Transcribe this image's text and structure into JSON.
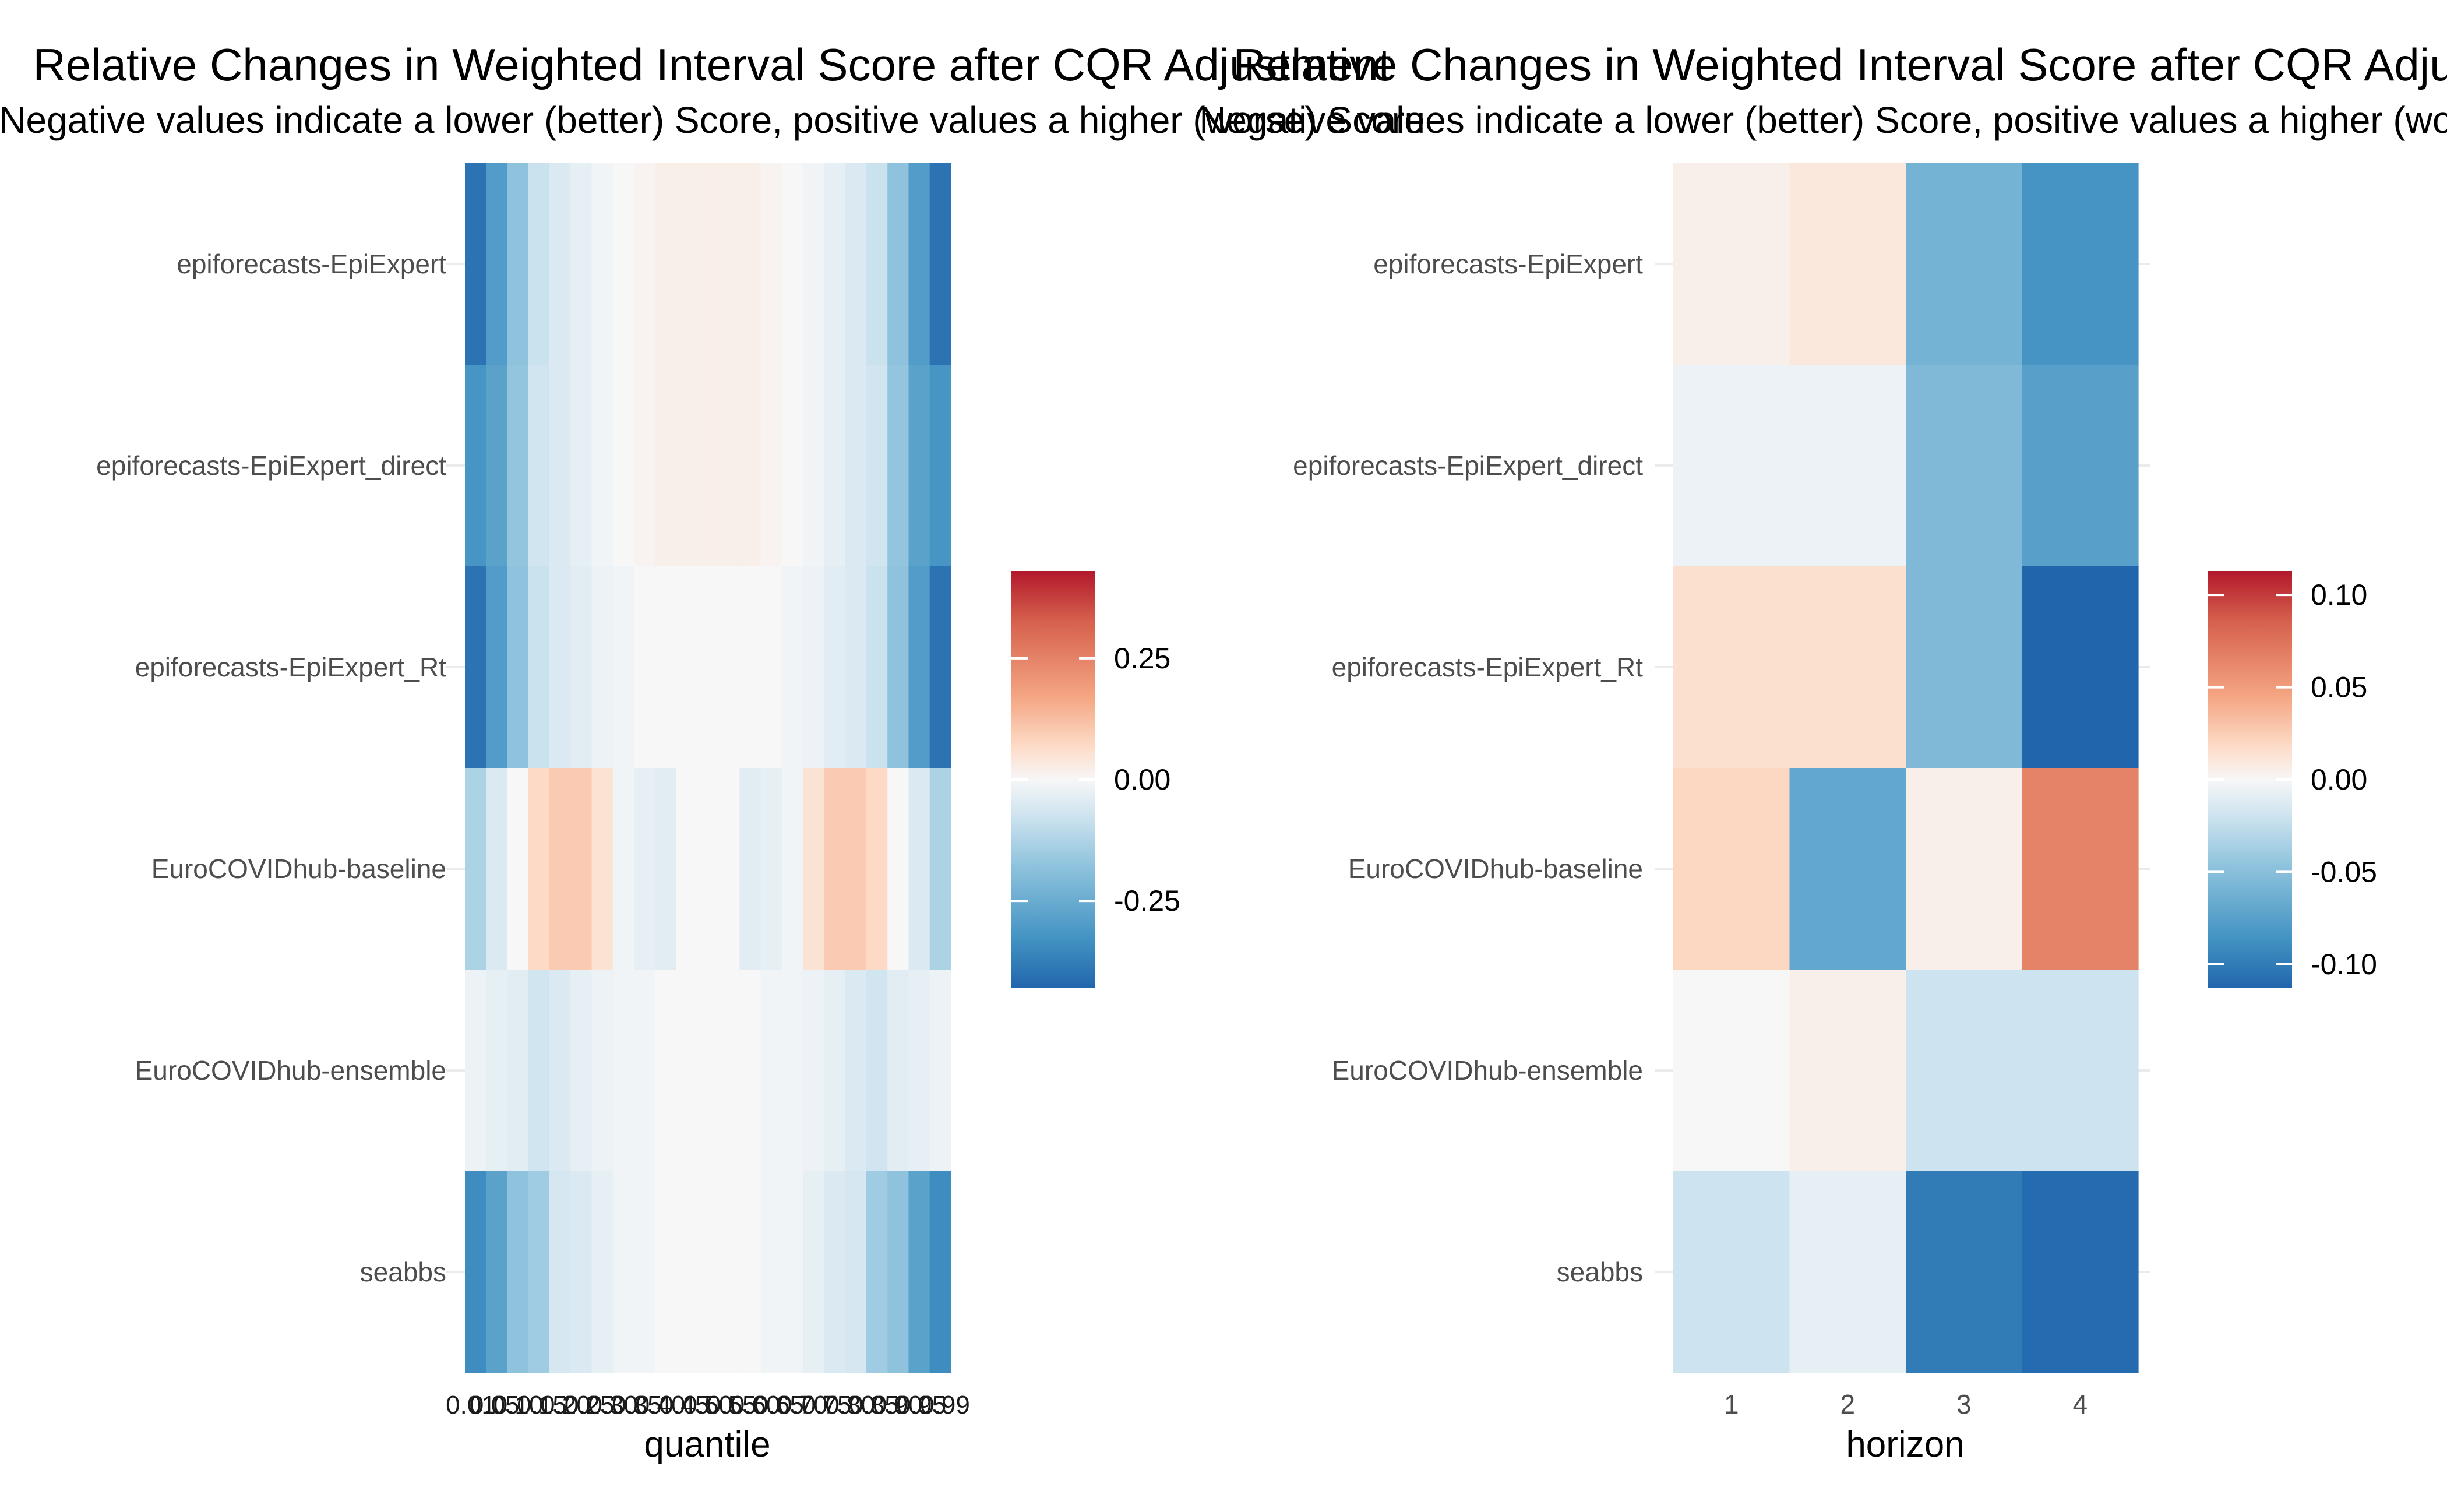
{
  "chart_data": [
    {
      "type": "heatmap",
      "title": "Relative Changes in Weighted Interval Score after CQR Adjustment",
      "subtitle": "Negative values indicate a lower (better) Score, positive values a higher (worse) Score",
      "xlabel": "quantile",
      "ylabel": "",
      "x": [
        "0.01",
        "0.025",
        "0.05",
        "0.1",
        "0.15",
        "0.2",
        "0.25",
        "0.3",
        "0.35",
        "0.4",
        "0.45",
        "0.5",
        "0.55",
        "0.6",
        "0.65",
        "0.7",
        "0.75",
        "0.8",
        "0.85",
        "0.9",
        "0.95",
        "0.975",
        "0.99"
      ],
      "x_tick_labels": [
        "0.01",
        "0.05",
        "0.10",
        "0.15",
        "0.20",
        "0.25",
        "0.30",
        "0.35",
        "0.40",
        "0.45",
        "0.50",
        "0.55",
        "0.60",
        "0.65",
        "0.70",
        "0.75",
        "0.80",
        "0.85",
        "0.90",
        "0.95",
        "0.99"
      ],
      "y": [
        "epiforecasts-EpiExpert",
        "epiforecasts-EpiExpert_direct",
        "epiforecasts-EpiExpert_Rt",
        "EuroCOVIDhub-baseline",
        "EuroCOVIDhub-ensemble",
        "seabbs"
      ],
      "values": [
        [
          -0.4,
          -0.3,
          -0.18,
          -0.08,
          -0.05,
          -0.03,
          -0.01,
          0.0,
          0.01,
          0.02,
          0.02,
          0.02,
          0.02,
          0.02,
          0.01,
          0.0,
          -0.01,
          -0.03,
          -0.05,
          -0.08,
          -0.18,
          -0.3,
          -0.4
        ],
        [
          -0.32,
          -0.28,
          -0.17,
          -0.07,
          -0.05,
          -0.03,
          -0.01,
          0.0,
          0.01,
          0.02,
          0.02,
          0.02,
          0.02,
          0.02,
          0.01,
          0.0,
          -0.01,
          -0.03,
          -0.05,
          -0.07,
          -0.17,
          -0.28,
          -0.32
        ],
        [
          -0.4,
          -0.3,
          -0.18,
          -0.08,
          -0.05,
          -0.04,
          -0.02,
          -0.01,
          0.0,
          0.0,
          0.0,
          0.0,
          0.0,
          0.0,
          0.0,
          -0.01,
          -0.02,
          -0.04,
          -0.05,
          -0.08,
          -0.18,
          -0.3,
          -0.4
        ],
        [
          -0.13,
          -0.05,
          0.0,
          0.07,
          0.1,
          0.1,
          0.05,
          -0.01,
          -0.03,
          -0.04,
          0.0,
          0.0,
          0.0,
          -0.04,
          -0.03,
          -0.01,
          0.05,
          0.1,
          0.1,
          0.07,
          0.0,
          -0.05,
          -0.13
        ],
        [
          -0.02,
          -0.03,
          -0.04,
          -0.07,
          -0.05,
          -0.03,
          -0.02,
          -0.01,
          -0.01,
          0.0,
          0.0,
          0.0,
          0.0,
          0.0,
          -0.01,
          -0.01,
          -0.02,
          -0.03,
          -0.05,
          -0.07,
          -0.04,
          -0.03,
          -0.02
        ],
        [
          -0.34,
          -0.28,
          -0.18,
          -0.15,
          -0.06,
          -0.05,
          -0.03,
          -0.01,
          -0.01,
          0.0,
          0.0,
          0.0,
          0.0,
          0.0,
          -0.01,
          -0.01,
          -0.03,
          -0.05,
          -0.06,
          -0.15,
          -0.18,
          -0.28,
          -0.34
        ]
      ],
      "colorbar": {
        "min": -0.43,
        "max": 0.43,
        "ticks": [
          "0.25",
          "0.00",
          "-0.25"
        ],
        "tick_values": [
          0.25,
          0.0,
          -0.25
        ]
      },
      "colors": {
        "low": "#2166ac",
        "mid": "#f7f7f7",
        "high": "#b2182b"
      }
    },
    {
      "type": "heatmap",
      "title": "Relative Changes in Weighted Interval Score after CQR Adjustment",
      "subtitle": "Negative values indicate a lower (better) Score, positive values a higher (worse) Score",
      "xlabel": "horizon",
      "ylabel": "",
      "x": [
        "1",
        "2",
        "3",
        "4"
      ],
      "x_tick_labels": [
        "1",
        "2",
        "3",
        "4"
      ],
      "y": [
        "epiforecasts-EpiExpert",
        "epiforecasts-EpiExpert_direct",
        "epiforecasts-EpiExpert_Rt",
        "EuroCOVIDhub-baseline",
        "EuroCOVIDhub-ensemble",
        "seabbs"
      ],
      "values": [
        [
          0.005,
          0.01,
          -0.06,
          -0.085
        ],
        [
          -0.005,
          -0.005,
          -0.055,
          -0.075
        ],
        [
          0.015,
          0.015,
          -0.055,
          -0.113
        ],
        [
          0.02,
          -0.07,
          0.005,
          0.065
        ],
        [
          0.0,
          0.005,
          -0.02,
          -0.02
        ],
        [
          -0.02,
          -0.008,
          -0.1,
          -0.11
        ]
      ],
      "colorbar": {
        "min": -0.113,
        "max": 0.113,
        "ticks": [
          "0.10",
          "0.05",
          "0.00",
          "-0.05",
          "-0.10"
        ],
        "tick_values": [
          0.1,
          0.05,
          0.0,
          -0.05,
          -0.1
        ]
      },
      "colors": {
        "low": "#2166ac",
        "mid": "#f7f7f7",
        "high": "#b2182b"
      }
    }
  ]
}
